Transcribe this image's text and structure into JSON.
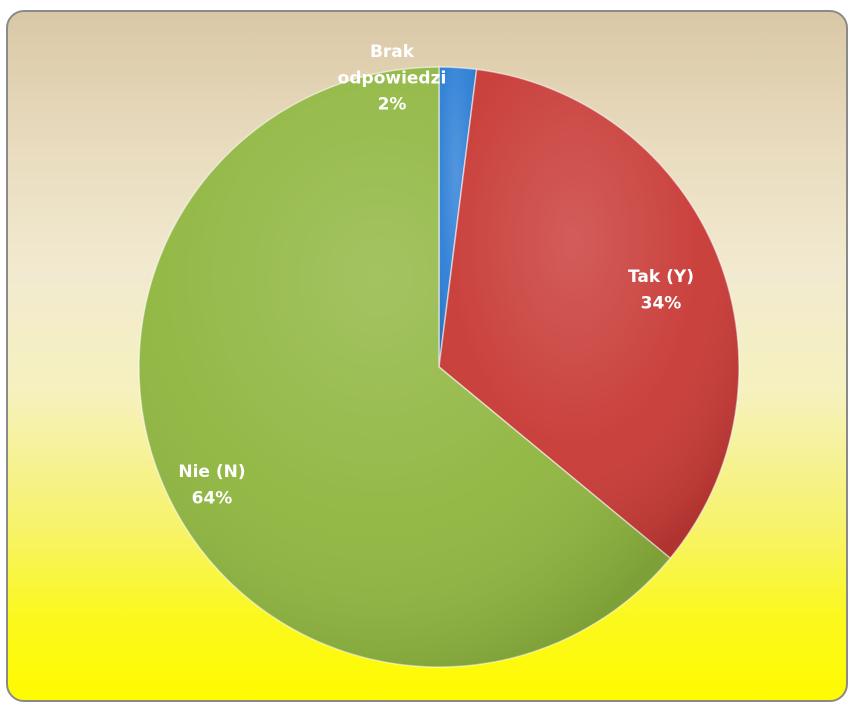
{
  "chart_data": {
    "type": "pie",
    "slices": [
      {
        "label_lines": [
          "Brak",
          "odpowiedzi"
        ],
        "percent_label": "2%",
        "value": 2,
        "color": "#2e7fd6"
      },
      {
        "label_lines": [
          "Tak (Y)"
        ],
        "percent_label": "34%",
        "value": 34,
        "color": "#c83a36"
      },
      {
        "label_lines": [
          "Nie (N)"
        ],
        "percent_label": "64%",
        "value": 64,
        "color": "#8fb63f"
      }
    ],
    "start_angle_deg": 0,
    "direction": "clockwise",
    "legend": "none"
  },
  "colors": {
    "background_top": "#d9c8a6",
    "background_bottom": "#fffb00",
    "frame_border": "#8a8a8a"
  }
}
